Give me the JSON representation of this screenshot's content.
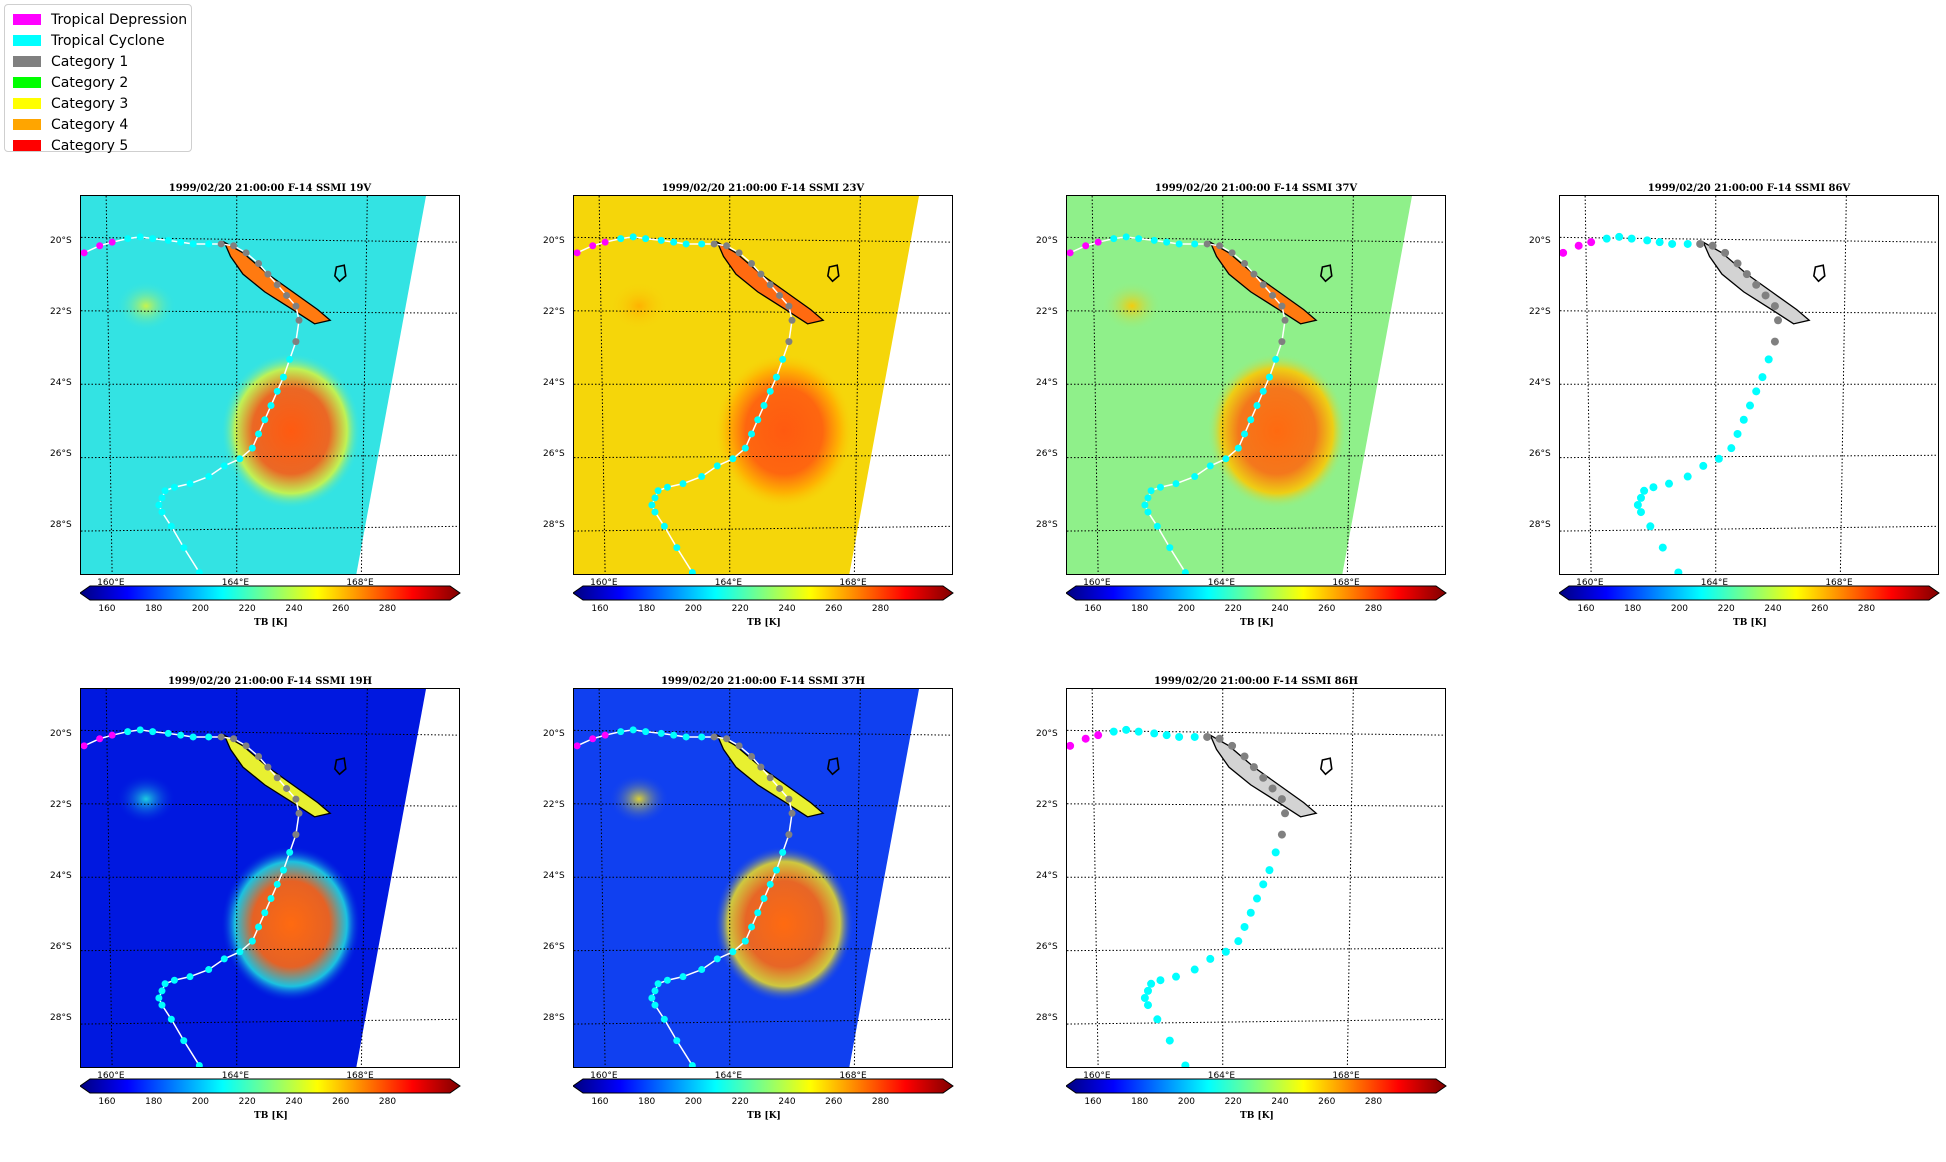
{
  "legend": {
    "items": [
      {
        "label": "Tropical Depression",
        "color": "#ff00ff"
      },
      {
        "label": "Tropical Cyclone",
        "color": "#00ffff"
      },
      {
        "label": "Category 1",
        "color": "#808080"
      },
      {
        "label": "Category 2",
        "color": "#00ff00"
      },
      {
        "label": "Category 3",
        "color": "#ffff00"
      },
      {
        "label": "Category 4",
        "color": "#ffa500"
      },
      {
        "label": "Category 5",
        "color": "#ff0000"
      }
    ]
  },
  "panels": [
    {
      "title": "1999/02/20 21:00:00  F-14 SSMI 19V",
      "mode": "tb",
      "base": "#33e3e3",
      "blob": "#ff5a10",
      "ring": "#d8f53c",
      "island": "#ff7a10"
    },
    {
      "title": "1999/02/20 21:00:00  F-14 SSMI 23V",
      "mode": "tb",
      "base": "#f5d60a",
      "blob": "#ff5a10",
      "ring": "#ffae00",
      "island": "#ff6a10"
    },
    {
      "title": "1999/02/20 21:00:00  F-14 SSMI 37V",
      "mode": "tb",
      "base": "#8ff08a",
      "blob": "#ff6a10",
      "ring": "#ffc800",
      "island": "#ff7a10"
    },
    {
      "title": "1999/02/20 21:00:00  F-14 SSMI 86V",
      "mode": "empty",
      "base": "#ffffff",
      "blob": "#ffffff",
      "ring": "#ffffff",
      "island": "#d3d3d3"
    },
    {
      "title": "1999/02/20 21:00:00  F-14 SSMI 19H",
      "mode": "tb",
      "base": "#0018e0",
      "blob": "#ff6a10",
      "ring": "#20e0e0",
      "island": "#e8f030"
    },
    {
      "title": "1999/02/20 21:00:00  F-14 SSMI 37H",
      "mode": "tb",
      "base": "#1040f0",
      "blob": "#ff6a10",
      "ring": "#f0e020",
      "island": "#e8f030"
    },
    {
      "title": "1999/02/20 21:00:00  F-14 SSMI 86H",
      "mode": "empty",
      "base": "#ffffff",
      "blob": "#ffffff",
      "ring": "#ffffff",
      "island": "#d3d3d3"
    }
  ],
  "axes": {
    "lat_labels": [
      "20°S",
      "22°S",
      "24°S",
      "26°S",
      "28°S"
    ],
    "lon_labels": [
      "160°E",
      "164°E",
      "168°E"
    ]
  },
  "colorbar": {
    "ticks": [
      "160",
      "180",
      "200",
      "220",
      "240",
      "260",
      "280"
    ],
    "label": "TB [K]",
    "colormap": [
      "#00007f",
      "#0000ff",
      "#0080ff",
      "#00ffff",
      "#80ff80",
      "#ffff00",
      "#ff8000",
      "#ff0000",
      "#7f0000"
    ]
  },
  "track": {
    "points": [
      {
        "lon": 159.1,
        "lat": -20.3,
        "cat": "Tropical Depression"
      },
      {
        "lon": 159.6,
        "lat": -20.1,
        "cat": "Tropical Depression"
      },
      {
        "lon": 160.0,
        "lat": -20.0,
        "cat": "Tropical Depression"
      },
      {
        "lon": 160.5,
        "lat": -19.9,
        "cat": "Tropical Cyclone"
      },
      {
        "lon": 160.9,
        "lat": -19.85,
        "cat": "Tropical Cyclone"
      },
      {
        "lon": 161.3,
        "lat": -19.9,
        "cat": "Tropical Cyclone"
      },
      {
        "lon": 161.8,
        "lat": -19.95,
        "cat": "Tropical Cyclone"
      },
      {
        "lon": 162.2,
        "lat": -20.0,
        "cat": "Tropical Cyclone"
      },
      {
        "lon": 162.6,
        "lat": -20.05,
        "cat": "Tropical Cyclone"
      },
      {
        "lon": 163.1,
        "lat": -20.05,
        "cat": "Tropical Cyclone"
      },
      {
        "lon": 163.5,
        "lat": -20.05,
        "cat": "Category 1"
      },
      {
        "lon": 163.9,
        "lat": -20.1,
        "cat": "Category 1"
      },
      {
        "lon": 164.3,
        "lat": -20.3,
        "cat": "Category 1"
      },
      {
        "lon": 164.7,
        "lat": -20.6,
        "cat": "Category 1"
      },
      {
        "lon": 165.0,
        "lat": -20.9,
        "cat": "Category 1"
      },
      {
        "lon": 165.3,
        "lat": -21.2,
        "cat": "Category 1"
      },
      {
        "lon": 165.6,
        "lat": -21.5,
        "cat": "Category 1"
      },
      {
        "lon": 165.9,
        "lat": -21.8,
        "cat": "Category 1"
      },
      {
        "lon": 166.0,
        "lat": -22.2,
        "cat": "Category 1"
      },
      {
        "lon": 165.9,
        "lat": -22.8,
        "cat": "Category 1"
      },
      {
        "lon": 165.7,
        "lat": -23.3,
        "cat": "Tropical Cyclone"
      },
      {
        "lon": 165.5,
        "lat": -23.8,
        "cat": "Tropical Cyclone"
      },
      {
        "lon": 165.3,
        "lat": -24.2,
        "cat": "Tropical Cyclone"
      },
      {
        "lon": 165.1,
        "lat": -24.6,
        "cat": "Tropical Cyclone"
      },
      {
        "lon": 164.9,
        "lat": -25.0,
        "cat": "Tropical Cyclone"
      },
      {
        "lon": 164.7,
        "lat": -25.4,
        "cat": "Tropical Cyclone"
      },
      {
        "lon": 164.5,
        "lat": -25.8,
        "cat": "Tropical Cyclone"
      },
      {
        "lon": 164.1,
        "lat": -26.1,
        "cat": "Tropical Cyclone"
      },
      {
        "lon": 163.6,
        "lat": -26.3,
        "cat": "Tropical Cyclone"
      },
      {
        "lon": 163.1,
        "lat": -26.6,
        "cat": "Tropical Cyclone"
      },
      {
        "lon": 162.5,
        "lat": -26.8,
        "cat": "Tropical Cyclone"
      },
      {
        "lon": 162.0,
        "lat": -26.9,
        "cat": "Tropical Cyclone"
      },
      {
        "lon": 161.7,
        "lat": -27.0,
        "cat": "Tropical Cyclone"
      },
      {
        "lon": 161.6,
        "lat": -27.2,
        "cat": "Tropical Cyclone"
      },
      {
        "lon": 161.5,
        "lat": -27.4,
        "cat": "Tropical Cyclone"
      },
      {
        "lon": 161.6,
        "lat": -27.6,
        "cat": "Tropical Cyclone"
      },
      {
        "lon": 161.9,
        "lat": -28.0,
        "cat": "Tropical Cyclone"
      },
      {
        "lon": 162.3,
        "lat": -28.6,
        "cat": "Tropical Cyclone"
      },
      {
        "lon": 162.8,
        "lat": -29.3,
        "cat": "Tropical Cyclone"
      }
    ]
  }
}
